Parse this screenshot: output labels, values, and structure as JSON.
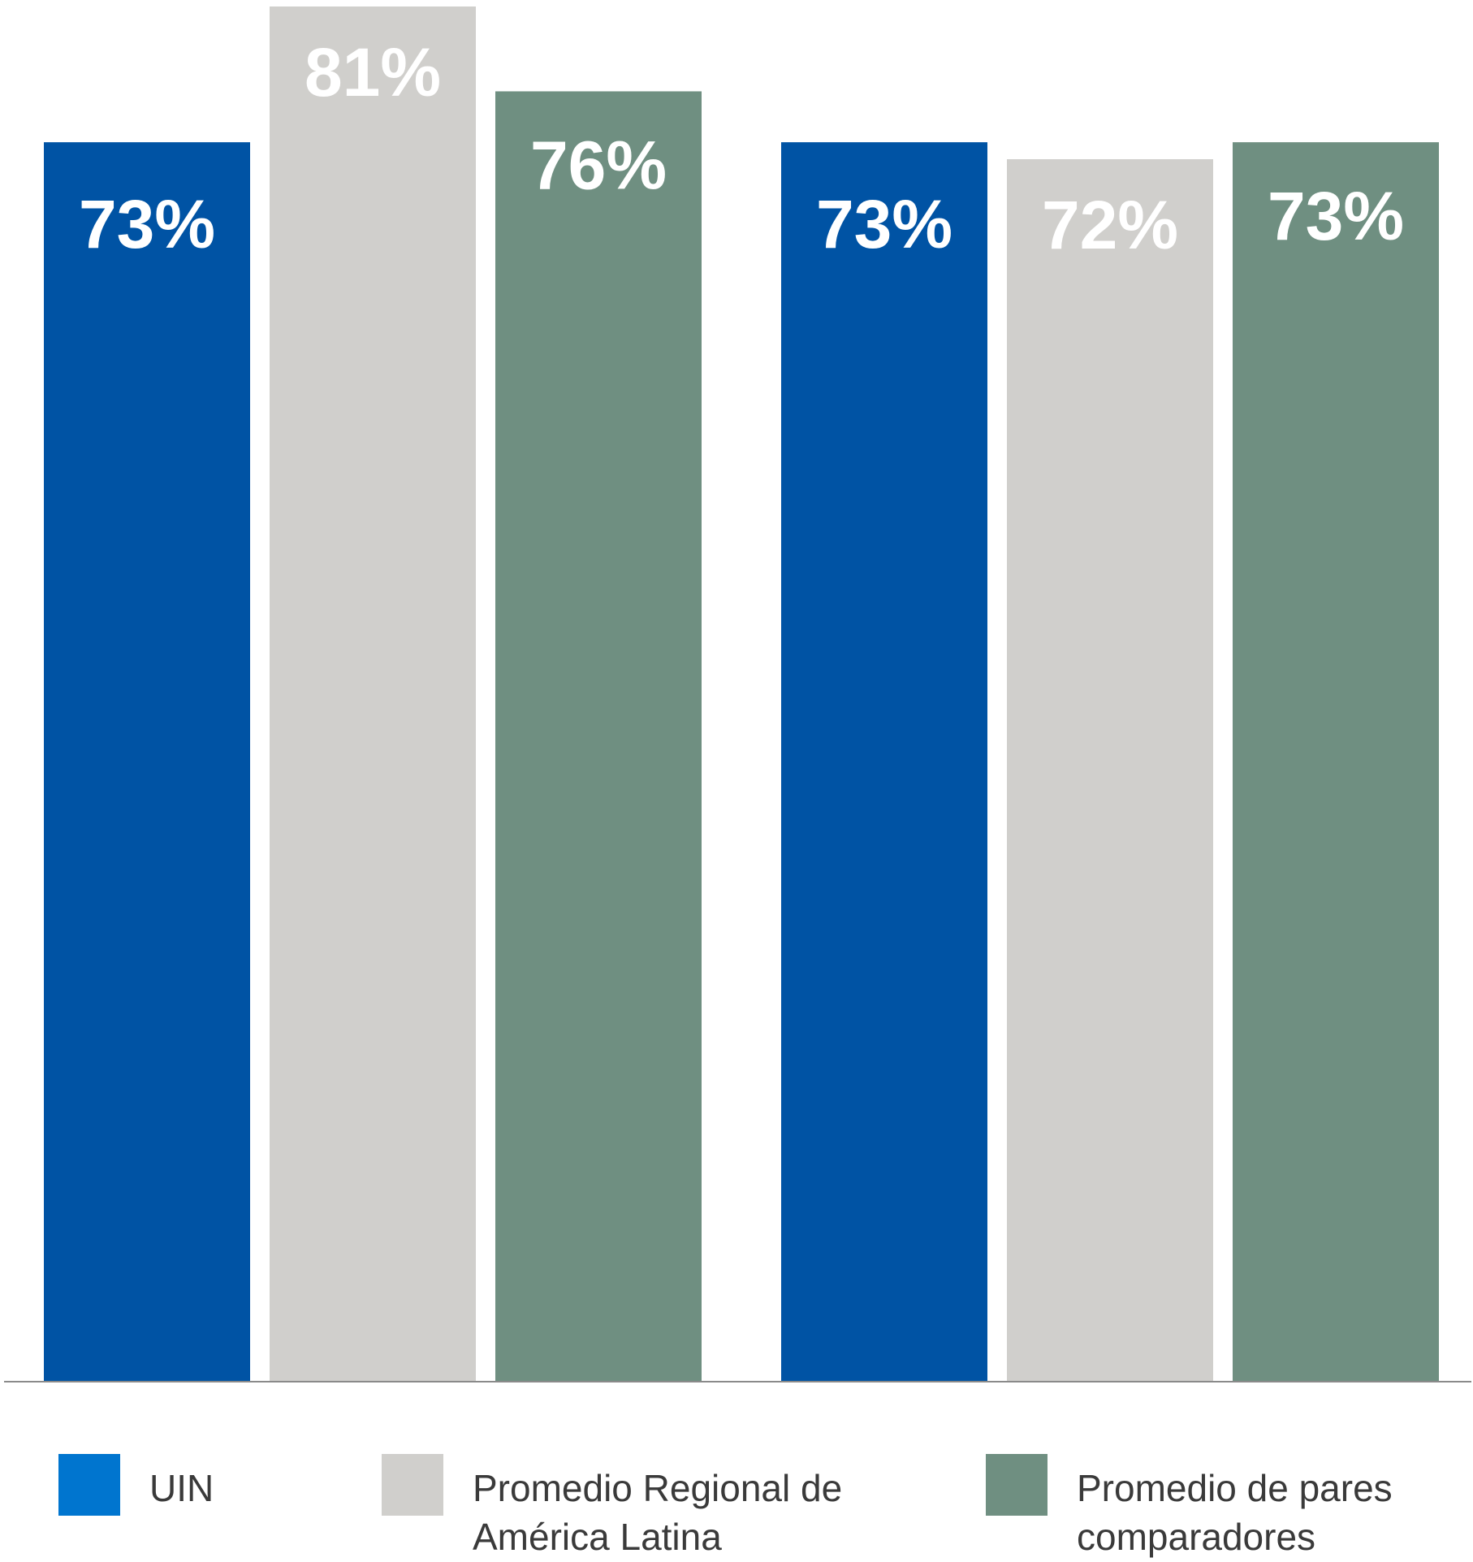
{
  "chart_data": {
    "type": "bar",
    "groups": 2,
    "series": [
      {
        "name": "UIN",
        "values": [
          73,
          73
        ],
        "labels": [
          "73%",
          "73%"
        ],
        "color": "#0053A4"
      },
      {
        "name": "Promedio Regional de América Latina",
        "values": [
          81,
          72
        ],
        "labels": [
          "81%",
          "72%"
        ],
        "color": "#D0CFCC"
      },
      {
        "name": "Promedio de pares comparadores",
        "values": [
          76,
          73
        ],
        "labels": [
          "76%",
          "73%"
        ],
        "color": "#6F8F81"
      }
    ],
    "value_format": "percent",
    "ylim": [
      0,
      81
    ],
    "grid": false,
    "legend_position": "bottom",
    "baseline_color": "#8A8A8A"
  },
  "legend": {
    "items": [
      {
        "label": "UIN",
        "color": "#0075CF"
      },
      {
        "label": "Promedio Regional de América Latina",
        "color": "#D0CFCC"
      },
      {
        "label": "Promedio de pares comparadores",
        "color": "#6F8F81"
      }
    ]
  }
}
